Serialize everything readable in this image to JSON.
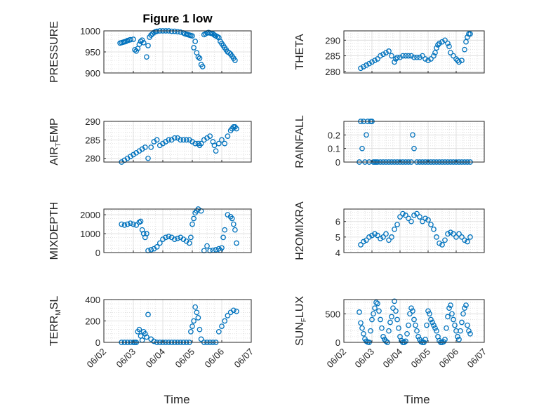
{
  "figure": {
    "title": "Figure 1 low",
    "x_tick_labels": [
      "06/02",
      "06/03",
      "06/04",
      "06/05",
      "06/06",
      "06/07"
    ],
    "x_label": "Time",
    "marker_color": "#0072BD"
  },
  "chart_data": [
    {
      "type": "scatter",
      "ylabel": "PRESSURE",
      "title": "Figure 1 low",
      "xlabel": "",
      "ylim": [
        900,
        1000
      ],
      "yticks": [
        900,
        950,
        1000
      ],
      "xlim": [
        0,
        5
      ],
      "grid": true,
      "x": [
        0.55,
        0.6,
        0.65,
        0.7,
        0.75,
        0.8,
        0.85,
        0.9,
        1.0,
        1.05,
        1.1,
        1.15,
        1.2,
        1.25,
        1.3,
        1.35,
        1.45,
        1.5,
        1.55,
        1.6,
        1.65,
        1.7,
        1.75,
        1.8,
        1.9,
        2.0,
        2.1,
        2.2,
        2.3,
        2.4,
        2.5,
        2.6,
        2.7,
        2.75,
        2.8,
        2.85,
        2.9,
        2.95,
        3.0,
        3.05,
        3.1,
        3.15,
        3.2,
        3.25,
        3.3,
        3.35,
        3.4,
        3.45,
        3.5,
        3.55,
        3.6,
        3.65,
        3.7,
        3.75,
        3.8,
        3.85,
        3.9,
        3.95,
        4.0,
        4.05,
        4.1,
        4.15,
        4.2,
        4.25,
        4.3,
        4.35,
        4.4,
        4.45
      ],
      "y": [
        971,
        972,
        973,
        974,
        975,
        977,
        978,
        979,
        980,
        955,
        952,
        958,
        968,
        975,
        978,
        972,
        938,
        965,
        985,
        990,
        993,
        996,
        998,
        999,
        1000,
        1000,
        1000,
        1000,
        999,
        999,
        998,
        997,
        995,
        993,
        992,
        991,
        990,
        989,
        988,
        960,
        975,
        948,
        938,
        935,
        920,
        915,
        991,
        993,
        995,
        996,
        995,
        994,
        993,
        990,
        988,
        986,
        984,
        975,
        970,
        965,
        960,
        955,
        950,
        948,
        945,
        940,
        935,
        930
      ]
    },
    {
      "type": "scatter",
      "ylabel": "THETA",
      "ylim": [
        279.5,
        293
      ],
      "yticks": [
        280,
        285,
        290
      ],
      "xlim": [
        0,
        5
      ],
      "grid": true,
      "x": [
        0.6,
        0.7,
        0.8,
        0.9,
        1.0,
        1.1,
        1.2,
        1.3,
        1.4,
        1.5,
        1.6,
        1.7,
        1.8,
        1.85,
        1.9,
        2.0,
        2.1,
        2.2,
        2.3,
        2.4,
        2.5,
        2.6,
        2.7,
        2.8,
        2.9,
        3.0,
        3.1,
        3.2,
        3.25,
        3.3,
        3.35,
        3.4,
        3.5,
        3.6,
        3.7,
        3.75,
        3.8,
        3.9,
        4.0,
        4.05,
        4.1,
        4.2,
        4.3,
        4.35,
        4.4,
        4.45,
        4.5
      ],
      "y": [
        281,
        281.5,
        282,
        282.5,
        283,
        283.5,
        284,
        285,
        285.5,
        286,
        286.5,
        285,
        283,
        284,
        284.5,
        284.5,
        285,
        285,
        285,
        285,
        284.5,
        284.5,
        284.5,
        285,
        284,
        283.5,
        284,
        285,
        286,
        287.5,
        288.5,
        289,
        289.5,
        290,
        289,
        288,
        286,
        285,
        284,
        283.5,
        283,
        283.5,
        287,
        289.5,
        291,
        292,
        292
      ]
    },
    {
      "type": "scatter",
      "ylabel": "AIR_TEMP",
      "ylim": [
        279,
        290
      ],
      "yticks": [
        280,
        285,
        290
      ],
      "xlim": [
        0,
        5
      ],
      "grid": true,
      "x": [
        0.6,
        0.7,
        0.8,
        0.9,
        1.0,
        1.1,
        1.2,
        1.3,
        1.4,
        1.5,
        1.6,
        1.7,
        1.8,
        1.9,
        2.0,
        2.1,
        2.2,
        2.3,
        2.4,
        2.5,
        2.6,
        2.7,
        2.8,
        2.9,
        3.0,
        3.1,
        3.2,
        3.25,
        3.3,
        3.4,
        3.5,
        3.6,
        3.7,
        3.75,
        3.8,
        3.9,
        4.0,
        4.1,
        4.2,
        4.3,
        4.35,
        4.4,
        4.45,
        4.5
      ],
      "y": [
        279,
        279.5,
        280,
        280.5,
        281,
        281.5,
        282,
        282.5,
        283,
        280,
        283,
        284.5,
        285,
        283.5,
        284,
        284.5,
        285,
        285,
        285.5,
        285.5,
        285,
        285,
        285,
        285,
        284.5,
        284,
        284,
        283.5,
        284,
        285,
        285.5,
        286,
        284.5,
        283.5,
        282,
        284,
        285,
        284,
        286,
        287.5,
        288,
        288.5,
        288.5,
        288
      ]
    },
    {
      "type": "scatter",
      "ylabel": "RAINFALL",
      "ylim": [
        0,
        0.3
      ],
      "yticks": [
        0,
        0.1,
        0.2
      ],
      "xlim": [
        0,
        5
      ],
      "grid": true,
      "x": [
        0.55,
        0.6,
        0.65,
        0.7,
        0.75,
        0.8,
        0.85,
        0.9,
        0.95,
        1.0,
        1.05,
        1.1,
        1.15,
        1.2,
        1.3,
        1.4,
        1.5,
        1.6,
        1.7,
        1.8,
        1.9,
        2.0,
        2.1,
        2.2,
        2.3,
        2.4,
        2.45,
        2.5,
        2.6,
        2.7,
        2.8,
        2.9,
        3.0,
        3.1,
        3.2,
        3.3,
        3.4,
        3.5,
        3.6,
        3.7,
        3.8,
        3.9,
        4.0,
        4.1,
        4.2,
        4.3,
        4.4,
        4.5
      ],
      "y": [
        0,
        0.3,
        0.1,
        0.3,
        0,
        0.2,
        0.3,
        0,
        0.3,
        0.3,
        0,
        0,
        0,
        0,
        0,
        0,
        0,
        0,
        0,
        0,
        0,
        0,
        0,
        0,
        0,
        0,
        0.2,
        0.1,
        0,
        0,
        0,
        0,
        0,
        0,
        0,
        0,
        0,
        0,
        0,
        0,
        0,
        0,
        0,
        0,
        0,
        0,
        0,
        0
      ]
    },
    {
      "type": "scatter",
      "ylabel": "MIXDEPTH",
      "ylim": [
        0,
        2300
      ],
      "yticks": [
        0,
        1000,
        2000
      ],
      "xlim": [
        0,
        5
      ],
      "grid": true,
      "x": [
        0.6,
        0.7,
        0.8,
        0.9,
        1.0,
        1.1,
        1.2,
        1.25,
        1.3,
        1.35,
        1.4,
        1.45,
        1.5,
        1.6,
        1.7,
        1.8,
        1.9,
        2.0,
        2.1,
        2.2,
        2.3,
        2.4,
        2.5,
        2.6,
        2.7,
        2.8,
        2.9,
        2.95,
        3.0,
        3.05,
        3.1,
        3.15,
        3.2,
        3.3,
        3.4,
        3.5,
        3.6,
        3.7,
        3.8,
        3.9,
        3.95,
        4.0,
        4.05,
        4.1,
        4.2,
        4.3,
        4.35,
        4.4,
        4.45,
        4.5
      ],
      "y": [
        1500,
        1450,
        1500,
        1550,
        1500,
        1450,
        1600,
        1650,
        1200,
        1000,
        800,
        1000,
        100,
        150,
        200,
        300,
        500,
        700,
        800,
        850,
        800,
        700,
        750,
        800,
        700,
        600,
        500,
        800,
        1500,
        1800,
        2100,
        2200,
        2300,
        2200,
        100,
        350,
        100,
        120,
        150,
        200,
        120,
        250,
        800,
        1200,
        2000,
        1900,
        1800,
        1500,
        1200,
        500
      ]
    },
    {
      "type": "scatter",
      "ylabel": "H2OMIXRA",
      "ylim": [
        4,
        6.8
      ],
      "yticks": [
        4,
        5,
        6
      ],
      "xlim": [
        0,
        5
      ],
      "grid": true,
      "x": [
        0.6,
        0.7,
        0.8,
        0.9,
        1.0,
        1.1,
        1.2,
        1.3,
        1.4,
        1.5,
        1.6,
        1.7,
        1.8,
        1.9,
        2.0,
        2.1,
        2.2,
        2.3,
        2.4,
        2.5,
        2.6,
        2.7,
        2.8,
        2.9,
        3.0,
        3.1,
        3.2,
        3.3,
        3.4,
        3.5,
        3.6,
        3.7,
        3.8,
        3.9,
        4.0,
        4.1,
        4.2,
        4.3,
        4.4,
        4.5
      ],
      "y": [
        4.5,
        4.7,
        4.8,
        5.0,
        5.1,
        5.2,
        5.1,
        4.9,
        5.0,
        5.2,
        4.8,
        5.0,
        5.5,
        5.8,
        6.3,
        6.5,
        6.4,
        6.2,
        6.0,
        6.4,
        6.5,
        6.3,
        6.0,
        6.2,
        6.1,
        5.8,
        5.5,
        5.0,
        4.6,
        4.5,
        4.8,
        5.2,
        5.3,
        5.2,
        5.0,
        5.2,
        5.0,
        4.8,
        4.7,
        5.0
      ]
    },
    {
      "type": "scatter",
      "ylabel": "TERR_MSL",
      "ylim": [
        0,
        400
      ],
      "yticks": [
        0,
        200,
        400
      ],
      "xlim": [
        0,
        5
      ],
      "grid": true,
      "x": [
        0.6,
        0.7,
        0.8,
        0.9,
        1.0,
        1.05,
        1.1,
        1.15,
        1.2,
        1.25,
        1.3,
        1.35,
        1.4,
        1.45,
        1.5,
        1.6,
        1.7,
        1.8,
        1.9,
        2.0,
        2.1,
        2.2,
        2.3,
        2.4,
        2.5,
        2.6,
        2.7,
        2.8,
        2.9,
        2.95,
        3.0,
        3.05,
        3.1,
        3.15,
        3.2,
        3.25,
        3.3,
        3.4,
        3.5,
        3.6,
        3.7,
        3.8,
        3.9,
        4.0,
        4.1,
        4.2,
        4.3,
        4.4,
        4.5
      ],
      "y": [
        0,
        0,
        0,
        0,
        0,
        0,
        0,
        100,
        120,
        60,
        20,
        100,
        80,
        50,
        260,
        30,
        10,
        0,
        0,
        0,
        0,
        0,
        0,
        0,
        0,
        0,
        0,
        0,
        0,
        100,
        150,
        200,
        330,
        280,
        230,
        120,
        30,
        0,
        0,
        0,
        0,
        0,
        100,
        150,
        200,
        250,
        280,
        300,
        290
      ]
    },
    {
      "type": "scatter",
      "ylabel": "SUN_FLUX",
      "ylim": [
        0,
        750
      ],
      "yticks": [
        0,
        500
      ],
      "xlim": [
        0,
        5
      ],
      "grid": true,
      "x": [
        0.55,
        0.6,
        0.65,
        0.7,
        0.75,
        0.8,
        0.85,
        0.9,
        0.95,
        1.0,
        1.05,
        1.1,
        1.15,
        1.2,
        1.25,
        1.3,
        1.35,
        1.4,
        1.45,
        1.5,
        1.55,
        1.6,
        1.65,
        1.7,
        1.75,
        1.8,
        1.85,
        1.9,
        1.95,
        2.0,
        2.05,
        2.1,
        2.15,
        2.2,
        2.25,
        2.3,
        2.35,
        2.4,
        2.45,
        2.5,
        2.55,
        2.6,
        2.65,
        2.7,
        2.75,
        2.8,
        2.85,
        2.9,
        2.95,
        3.0,
        3.05,
        3.1,
        3.15,
        3.2,
        3.25,
        3.3,
        3.35,
        3.4,
        3.45,
        3.5,
        3.55,
        3.6,
        3.65,
        3.7,
        3.75,
        3.8,
        3.85,
        3.9,
        3.95,
        4.0,
        4.05,
        4.1,
        4.15,
        4.2,
        4.25,
        4.3,
        4.35,
        4.4,
        4.45,
        4.5
      ],
      "y": [
        530,
        340,
        250,
        150,
        60,
        20,
        5,
        0,
        200,
        400,
        500,
        600,
        700,
        680,
        550,
        400,
        250,
        100,
        50,
        20,
        0,
        200,
        350,
        450,
        600,
        720,
        550,
        400,
        250,
        100,
        30,
        0,
        0,
        20,
        150,
        300,
        500,
        600,
        550,
        400,
        300,
        200,
        100,
        50,
        10,
        0,
        0,
        50,
        300,
        550,
        500,
        400,
        350,
        300,
        250,
        200,
        100,
        30,
        0,
        0,
        10,
        50,
        250,
        450,
        600,
        650,
        500,
        400,
        300,
        200,
        100,
        50,
        200,
        350,
        500,
        600,
        650,
        300,
        200,
        150
      ]
    }
  ]
}
